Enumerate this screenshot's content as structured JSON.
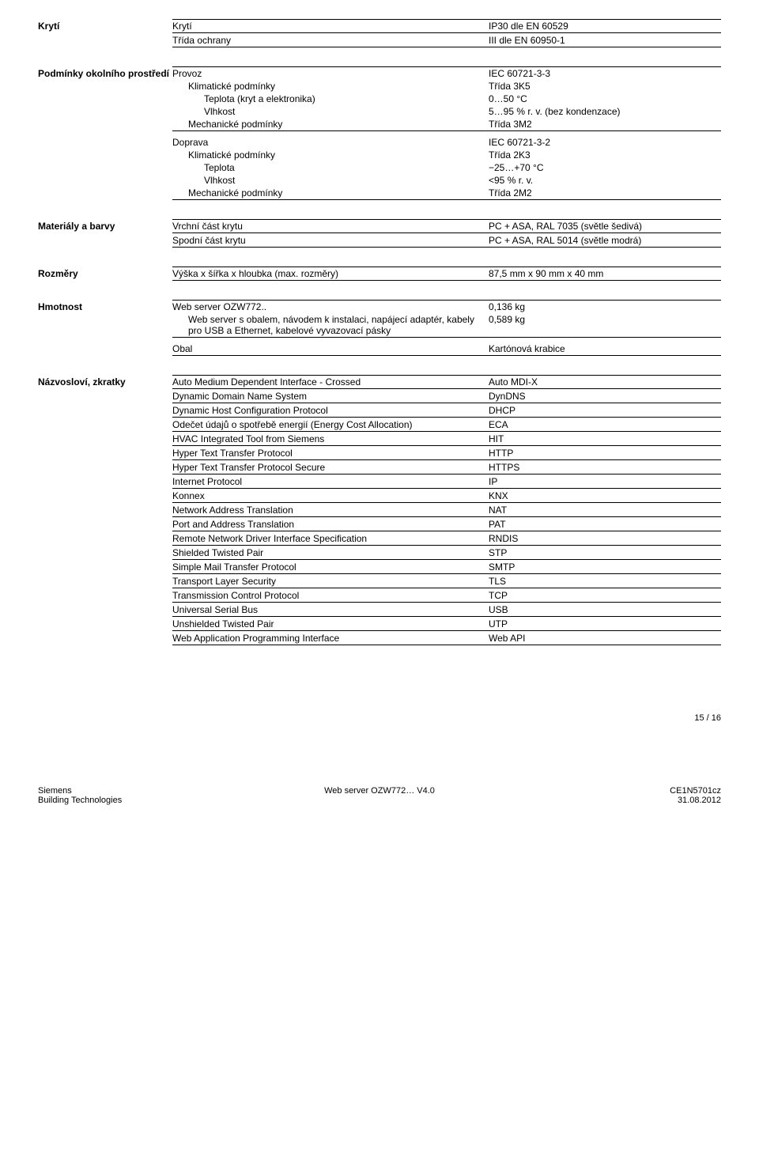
{
  "sections": {
    "kryti": {
      "label": "Krytí",
      "rows": [
        {
          "k": "Krytí",
          "v": "IP30 dle EN 60529"
        },
        {
          "k": "Třída ochrany",
          "v": "III dle EN 60950-1"
        }
      ]
    },
    "podminky": {
      "label": "Podmínky okolního prostředí",
      "block1": [
        {
          "k": "Provoz",
          "v": "IEC 60721-3-3",
          "indent": 0
        },
        {
          "k": "Klimatické podmínky",
          "v": "Třída 3K5",
          "indent": 1
        },
        {
          "k": "Teplota (kryt a elektronika)",
          "v": "0…50 °C",
          "indent": 2
        },
        {
          "k": "Vlhkost",
          "v": "5…95 % r. v. (bez kondenzace)",
          "indent": 2
        },
        {
          "k": "Mechanické podmínky",
          "v": "Třída 3M2",
          "indent": 1
        }
      ],
      "block2": [
        {
          "k": "Doprava",
          "v": "IEC 60721-3-2",
          "indent": 0
        },
        {
          "k": "Klimatické podmínky",
          "v": "Třída 2K3",
          "indent": 1
        },
        {
          "k": "Teplota",
          "v": "−25…+70 °C",
          "indent": 2
        },
        {
          "k": "Vlhkost",
          "v": "<95 % r. v.",
          "indent": 2
        },
        {
          "k": "Mechanické podmínky",
          "v": "Třída 2M2",
          "indent": 1
        }
      ]
    },
    "materialy": {
      "label": "Materiály a barvy",
      "rows": [
        {
          "k": "Vrchní část krytu",
          "v": "PC + ASA, RAL 7035 (světle šedivá)"
        },
        {
          "k": "Spodní část krytu",
          "v": "PC + ASA, RAL 5014 (světle modrá)"
        }
      ]
    },
    "rozmery": {
      "label": "Rozměry",
      "rows": [
        {
          "k": "Výška x šířka x hloubka (max. rozměry)",
          "v": "87,5 mm x 90 mm x 40 mm"
        }
      ]
    },
    "hmotnost": {
      "label": "Hmotnost",
      "block1": [
        {
          "k": "Web server OZW772..",
          "v": "0,136 kg",
          "indent": 0
        },
        {
          "k": "Web server s obalem, návodem k instalaci, napájecí adaptér, kabely pro USB a Ethernet, kabelové vyvazovací pásky",
          "v": "0,589 kg",
          "indent": 1
        }
      ],
      "block2": [
        {
          "k": "Obal",
          "v": "Kartónová krabice"
        }
      ]
    },
    "nazvoslovi": {
      "label": "Názvosloví, zkratky",
      "rows": [
        {
          "k": "Auto Medium Dependent Interface - Crossed",
          "v": "Auto MDI-X"
        },
        {
          "k": "Dynamic Domain Name System",
          "v": "DynDNS"
        },
        {
          "k": "Dynamic Host Configuration Protocol",
          "v": "DHCP"
        },
        {
          "k": "Odečet údajů o spotřebě energií (Energy Cost Allocation)",
          "v": "ECA"
        },
        {
          "k": "HVAC Integrated Tool from Siemens",
          "v": "HIT"
        },
        {
          "k": "Hyper Text Transfer Protocol",
          "v": "HTTP"
        },
        {
          "k": "Hyper Text Transfer Protocol Secure",
          "v": "HTTPS"
        },
        {
          "k": "Internet Protocol",
          "v": "IP"
        },
        {
          "k": "Konnex",
          "v": "KNX"
        },
        {
          "k": "Network Address Translation",
          "v": "NAT"
        },
        {
          "k": "Port and Address Translation",
          "v": "PAT"
        },
        {
          "k": "Remote Network Driver Interface Specification",
          "v": "RNDIS"
        },
        {
          "k": "Shielded Twisted Pair",
          "v": "STP"
        },
        {
          "k": "Simple Mail Transfer Protocol",
          "v": "SMTP"
        },
        {
          "k": "Transport Layer Security",
          "v": "TLS"
        },
        {
          "k": "Transmission Control Protocol",
          "v": "TCP"
        },
        {
          "k": "Universal Serial Bus",
          "v": "USB"
        },
        {
          "k": "Unshielded Twisted Pair",
          "v": "UTP"
        },
        {
          "k": "Web Application Programming Interface",
          "v": "Web API"
        }
      ]
    }
  },
  "page_num": "15 / 16",
  "footer": {
    "left1": "Siemens",
    "left2": "Building Technologies",
    "center": "Web server OZW772… V4.0",
    "right1": "CE1N5701cz",
    "right2": "31.08.2012"
  }
}
